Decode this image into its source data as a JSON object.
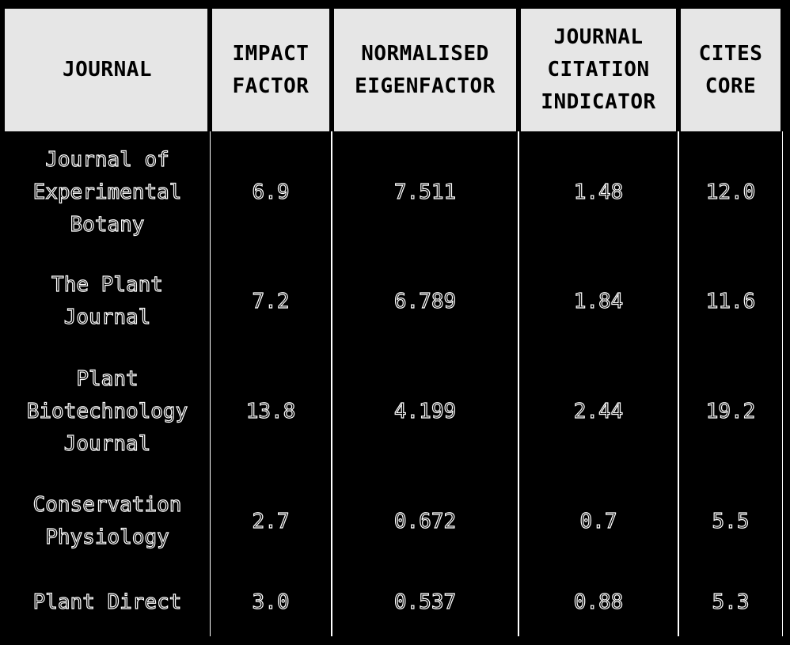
{
  "table": {
    "headers": [
      "JOURNAL",
      "IMPACT\nFACTOR",
      "NORMALISED\nEIGENFACTOR",
      "JOURNAL\nCITATION\nINDICATOR",
      "CITES\nCORE"
    ],
    "rows": [
      [
        "Journal of\nExperimental\nBotany",
        "6.9",
        "7.511",
        "1.48",
        "12.0"
      ],
      [
        "The Plant\nJournal",
        "7.2",
        "6.789",
        "1.84",
        "11.6"
      ],
      [
        "Plant\nBiotechnology\nJournal",
        "13.8",
        "4.199",
        "2.44",
        "19.2"
      ],
      [
        "Conservation\nPhysiology",
        "2.7",
        "0.672",
        "0.7",
        "5.5"
      ],
      [
        "Plant Direct",
        "3.0",
        "0.537",
        "0.88",
        "5.3"
      ]
    ]
  },
  "colors": {
    "header_background": "#e6e6e6",
    "body_background": "#000000",
    "text_outline": "#ffffff"
  }
}
